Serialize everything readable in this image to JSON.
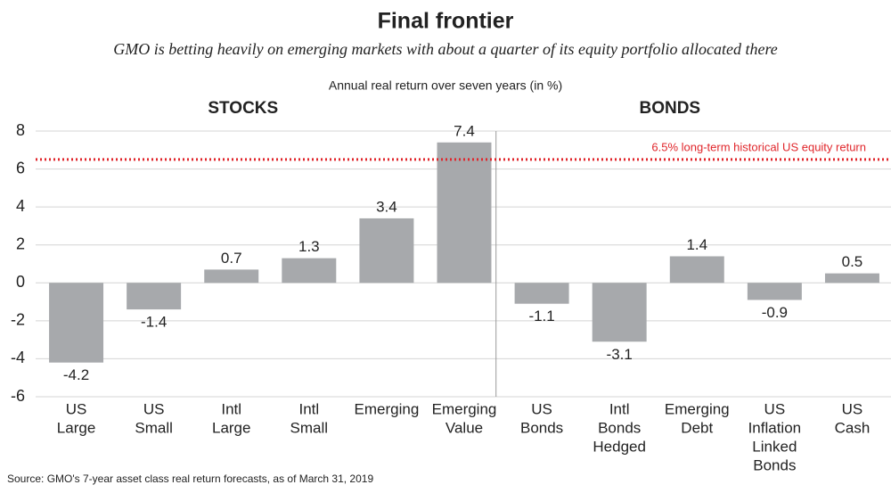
{
  "chart_data": {
    "type": "bar",
    "title": "Final frontier",
    "subtitle": "GMO is betting heavily on emerging markets with about a quarter of its equity portfolio allocated there",
    "y_axis_label": "Annual real return over seven years (in %)",
    "categories": [
      [
        "US",
        "Large"
      ],
      [
        "US",
        "Small"
      ],
      [
        "Intl",
        "Large"
      ],
      [
        "Intl",
        "Small"
      ],
      [
        "Emerging"
      ],
      [
        "Emerging",
        "Value"
      ],
      [
        "US",
        "Bonds"
      ],
      [
        "Intl",
        "Bonds",
        "Hedged"
      ],
      [
        "Emerging",
        "Debt"
      ],
      [
        "US",
        "Inflation",
        "Linked",
        "Bonds"
      ],
      [
        "US",
        "Cash"
      ]
    ],
    "category_groups": [
      "STOCKS",
      "STOCKS",
      "STOCKS",
      "STOCKS",
      "STOCKS",
      "STOCKS",
      "BONDS",
      "BONDS",
      "BONDS",
      "BONDS",
      "BONDS"
    ],
    "values": [
      -4.2,
      -1.4,
      0.7,
      1.3,
      3.4,
      7.4,
      -1.1,
      -3.1,
      1.4,
      -0.9,
      0.5
    ],
    "color": "#a7a9ac",
    "ylim": [
      -6,
      8
    ],
    "yticks": [
      8,
      6,
      4,
      2,
      0,
      -2,
      -4,
      -6
    ],
    "grid": true,
    "reference_lines": [
      {
        "value": 6.5,
        "label": "6.5% long-term historical US equity return",
        "color": "#e0262b"
      }
    ],
    "source": "Source: GMO's 7-year asset class real return forecasts, as of March 31, 2019"
  }
}
